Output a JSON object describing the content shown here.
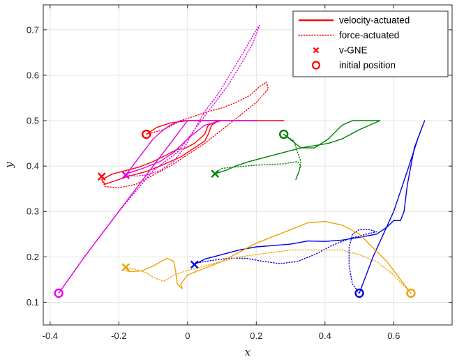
{
  "chart_data": {
    "type": "line",
    "xlabel": "x",
    "ylabel": "y",
    "xlim": [
      -0.42,
      0.77
    ],
    "ylim": [
      0.05,
      0.755
    ],
    "xticks": [
      -0.4,
      -0.2,
      0,
      0.2,
      0.4,
      0.6
    ],
    "xtick_labels": [
      "-0.4",
      "-0.2",
      "0",
      "0.2",
      "0.4",
      "0.6"
    ],
    "yticks": [
      0.1,
      0.2,
      0.3,
      0.4,
      0.5,
      0.6,
      0.7
    ],
    "ytick_labels": [
      "0.1",
      "0.2",
      "0.3",
      "0.4",
      "0.5",
      "0.6",
      "0.7"
    ],
    "grid": true,
    "legend_position": "top-right",
    "legend": [
      {
        "label": "velocity-actuated",
        "symbol": "solid-line",
        "color": "#ff0000"
      },
      {
        "label": "force-actuated",
        "symbol": "dotted-line",
        "color": "#ff0000"
      },
      {
        "label": "v-GNE",
        "symbol": "x-marker",
        "color": "#ff0000"
      },
      {
        "label": "initial position",
        "symbol": "circle-marker",
        "color": "#ff0000"
      }
    ],
    "agents": [
      {
        "color": "#ff0000",
        "initial_position": [
          -0.12,
          0.47
        ],
        "v_gne": [
          -0.25,
          0.377
        ],
        "velocity_actuated": [
          [
            -0.12,
            0.47
          ],
          [
            -0.09,
            0.485
          ],
          [
            -0.05,
            0.495
          ],
          [
            0.0,
            0.5
          ],
          [
            0.05,
            0.5
          ],
          [
            0.1,
            0.5
          ],
          [
            0.15,
            0.5
          ],
          [
            0.2,
            0.5
          ],
          [
            0.25,
            0.5
          ],
          [
            0.28,
            0.5
          ],
          [
            0.09,
            0.5
          ],
          [
            0.06,
            0.49
          ],
          [
            0.05,
            0.47
          ],
          [
            0.02,
            0.45
          ],
          [
            -0.01,
            0.438
          ],
          [
            -0.03,
            0.437
          ],
          [
            -0.06,
            0.425
          ],
          [
            -0.1,
            0.41
          ],
          [
            -0.14,
            0.398
          ],
          [
            -0.18,
            0.39
          ],
          [
            -0.22,
            0.382
          ],
          [
            -0.25,
            0.37
          ],
          [
            -0.24,
            0.36
          ],
          [
            -0.21,
            0.368
          ],
          [
            -0.17,
            0.378
          ],
          [
            -0.12,
            0.388
          ],
          [
            -0.08,
            0.4
          ],
          [
            -0.05,
            0.41
          ],
          [
            -0.02,
            0.42
          ],
          [
            0.0,
            0.43
          ],
          [
            0.03,
            0.445
          ],
          [
            0.05,
            0.455
          ],
          [
            0.06,
            0.47
          ],
          [
            0.07,
            0.49
          ],
          [
            0.09,
            0.5
          ]
        ],
        "force_actuated": [
          [
            -0.12,
            0.47
          ],
          [
            -0.07,
            0.48
          ],
          [
            -0.02,
            0.5
          ],
          [
            0.02,
            0.51
          ],
          [
            0.06,
            0.52
          ],
          [
            0.1,
            0.528
          ],
          [
            0.14,
            0.54
          ],
          [
            0.18,
            0.555
          ],
          [
            0.21,
            0.575
          ],
          [
            0.23,
            0.585
          ],
          [
            0.235,
            0.57
          ],
          [
            0.2,
            0.54
          ],
          [
            0.15,
            0.51
          ],
          [
            0.1,
            0.48
          ],
          [
            0.05,
            0.45
          ],
          [
            0.0,
            0.425
          ],
          [
            -0.05,
            0.4
          ],
          [
            -0.1,
            0.38
          ],
          [
            -0.15,
            0.36
          ],
          [
            -0.2,
            0.352
          ],
          [
            -0.24,
            0.355
          ],
          [
            -0.25,
            0.37
          ]
        ]
      },
      {
        "color": "#e600e6",
        "initial_position": [
          -0.375,
          0.12
        ],
        "v_gne": [
          -0.18,
          0.38
        ],
        "velocity_actuated": [
          [
            -0.375,
            0.12
          ],
          [
            -0.3,
            0.2
          ],
          [
            -0.2,
            0.3
          ],
          [
            -0.1,
            0.4
          ],
          [
            -0.05,
            0.45
          ],
          [
            -0.02,
            0.48
          ],
          [
            0.0,
            0.5
          ],
          [
            0.05,
            0.5
          ],
          [
            0.1,
            0.5
          ],
          [
            0.15,
            0.5
          ],
          [
            0.2,
            0.5
          ],
          [
            0.1,
            0.5
          ],
          [
            0.05,
            0.49
          ],
          [
            0.0,
            0.46
          ],
          [
            -0.04,
            0.43
          ],
          [
            -0.08,
            0.41
          ],
          [
            -0.13,
            0.395
          ],
          [
            -0.17,
            0.385
          ],
          [
            -0.18,
            0.38
          ],
          [
            -0.16,
            0.4
          ],
          [
            -0.13,
            0.43
          ],
          [
            -0.1,
            0.46
          ],
          [
            -0.07,
            0.48
          ],
          [
            -0.05,
            0.49
          ],
          [
            -0.02,
            0.5
          ],
          [
            0.0,
            0.5
          ]
        ],
        "force_actuated": [
          [
            -0.375,
            0.12
          ],
          [
            -0.3,
            0.2
          ],
          [
            -0.2,
            0.3
          ],
          [
            -0.1,
            0.39
          ],
          [
            -0.03,
            0.43
          ],
          [
            0.0,
            0.46
          ],
          [
            0.03,
            0.49
          ],
          [
            0.07,
            0.53
          ],
          [
            0.12,
            0.58
          ],
          [
            0.16,
            0.63
          ],
          [
            0.19,
            0.67
          ],
          [
            0.21,
            0.71
          ],
          [
            0.2,
            0.7
          ],
          [
            0.17,
            0.66
          ],
          [
            0.13,
            0.61
          ],
          [
            0.09,
            0.56
          ],
          [
            0.05,
            0.52
          ],
          [
            0.02,
            0.48
          ],
          [
            -0.01,
            0.44
          ],
          [
            -0.04,
            0.41
          ],
          [
            -0.08,
            0.39
          ],
          [
            -0.12,
            0.38
          ],
          [
            -0.15,
            0.378
          ],
          [
            -0.18,
            0.38
          ]
        ]
      },
      {
        "color": "#008000",
        "initial_position": [
          0.28,
          0.47
        ],
        "v_gne": [
          0.08,
          0.383
        ],
        "velocity_actuated": [
          [
            0.28,
            0.47
          ],
          [
            0.33,
            0.44
          ],
          [
            0.37,
            0.44
          ],
          [
            0.41,
            0.46
          ],
          [
            0.45,
            0.49
          ],
          [
            0.48,
            0.5
          ],
          [
            0.52,
            0.5
          ],
          [
            0.56,
            0.5
          ],
          [
            0.5,
            0.48
          ],
          [
            0.45,
            0.46
          ],
          [
            0.41,
            0.45
          ],
          [
            0.37,
            0.445
          ],
          [
            0.33,
            0.44
          ],
          [
            0.28,
            0.43
          ],
          [
            0.23,
            0.42
          ],
          [
            0.18,
            0.41
          ],
          [
            0.14,
            0.4
          ],
          [
            0.11,
            0.39
          ],
          [
            0.08,
            0.383
          ]
        ],
        "force_actuated": [
          [
            0.28,
            0.47
          ],
          [
            0.31,
            0.455
          ],
          [
            0.32,
            0.43
          ],
          [
            0.33,
            0.41
          ],
          [
            0.325,
            0.39
          ],
          [
            0.315,
            0.37
          ],
          [
            0.32,
            0.38
          ],
          [
            0.33,
            0.4
          ],
          [
            0.32,
            0.41
          ],
          [
            0.28,
            0.405
          ],
          [
            0.2,
            0.402
          ],
          [
            0.14,
            0.398
          ],
          [
            0.1,
            0.395
          ],
          [
            0.08,
            0.383
          ]
        ]
      },
      {
        "color": "#0000e6",
        "initial_position": [
          0.5,
          0.12
        ],
        "v_gne": [
          0.02,
          0.183
        ],
        "velocity_actuated": [
          [
            0.5,
            0.12
          ],
          [
            0.54,
            0.2
          ],
          [
            0.6,
            0.3
          ],
          [
            0.64,
            0.39
          ],
          [
            0.67,
            0.46
          ],
          [
            0.69,
            0.5
          ],
          [
            0.66,
            0.44
          ],
          [
            0.64,
            0.36
          ],
          [
            0.63,
            0.3
          ],
          [
            0.62,
            0.28
          ],
          [
            0.6,
            0.28
          ],
          [
            0.58,
            0.265
          ],
          [
            0.55,
            0.25
          ],
          [
            0.5,
            0.243
          ],
          [
            0.45,
            0.237
          ],
          [
            0.4,
            0.234
          ],
          [
            0.35,
            0.235
          ],
          [
            0.3,
            0.228
          ],
          [
            0.25,
            0.225
          ],
          [
            0.2,
            0.222
          ],
          [
            0.15,
            0.215
          ],
          [
            0.1,
            0.205
          ],
          [
            0.05,
            0.195
          ],
          [
            0.02,
            0.183
          ]
        ],
        "force_actuated": [
          [
            0.5,
            0.12
          ],
          [
            0.48,
            0.14
          ],
          [
            0.47,
            0.18
          ],
          [
            0.47,
            0.22
          ],
          [
            0.48,
            0.25
          ],
          [
            0.5,
            0.26
          ],
          [
            0.53,
            0.26
          ],
          [
            0.55,
            0.255
          ],
          [
            0.52,
            0.25
          ],
          [
            0.47,
            0.24
          ],
          [
            0.42,
            0.225
          ],
          [
            0.37,
            0.205
          ],
          [
            0.32,
            0.19
          ],
          [
            0.27,
            0.185
          ],
          [
            0.22,
            0.19
          ],
          [
            0.17,
            0.197
          ],
          [
            0.12,
            0.197
          ],
          [
            0.07,
            0.192
          ],
          [
            0.03,
            0.187
          ],
          [
            0.02,
            0.183
          ]
        ]
      },
      {
        "color": "#f0a000",
        "initial_position": [
          0.65,
          0.12
        ],
        "v_gne": [
          -0.18,
          0.177
        ],
        "velocity_actuated": [
          [
            0.65,
            0.12
          ],
          [
            0.62,
            0.15
          ],
          [
            0.58,
            0.19
          ],
          [
            0.54,
            0.22
          ],
          [
            0.5,
            0.25
          ],
          [
            0.45,
            0.27
          ],
          [
            0.4,
            0.278
          ],
          [
            0.35,
            0.275
          ],
          [
            0.3,
            0.26
          ],
          [
            0.25,
            0.245
          ],
          [
            0.2,
            0.23
          ],
          [
            0.15,
            0.21
          ],
          [
            0.1,
            0.19
          ],
          [
            0.05,
            0.175
          ],
          [
            0.0,
            0.16
          ],
          [
            -0.02,
            0.14
          ],
          [
            -0.015,
            0.13
          ],
          [
            -0.03,
            0.14
          ],
          [
            -0.035,
            0.17
          ],
          [
            -0.04,
            0.19
          ],
          [
            -0.06,
            0.197
          ],
          [
            -0.1,
            0.18
          ],
          [
            -0.13,
            0.17
          ],
          [
            -0.15,
            0.168
          ],
          [
            -0.17,
            0.168
          ],
          [
            -0.18,
            0.17
          ]
        ],
        "force_actuated": [
          [
            0.65,
            0.12
          ],
          [
            0.6,
            0.16
          ],
          [
            0.55,
            0.19
          ],
          [
            0.5,
            0.205
          ],
          [
            0.45,
            0.215
          ],
          [
            0.4,
            0.215
          ],
          [
            0.35,
            0.215
          ],
          [
            0.3,
            0.215
          ],
          [
            0.25,
            0.21
          ],
          [
            0.2,
            0.205
          ],
          [
            0.15,
            0.2
          ],
          [
            0.1,
            0.19
          ],
          [
            0.05,
            0.18
          ],
          [
            0.0,
            0.17
          ],
          [
            -0.04,
            0.16
          ],
          [
            -0.07,
            0.146
          ],
          [
            -0.1,
            0.155
          ],
          [
            -0.12,
            0.165
          ],
          [
            -0.15,
            0.172
          ],
          [
            -0.18,
            0.177
          ]
        ]
      }
    ]
  }
}
